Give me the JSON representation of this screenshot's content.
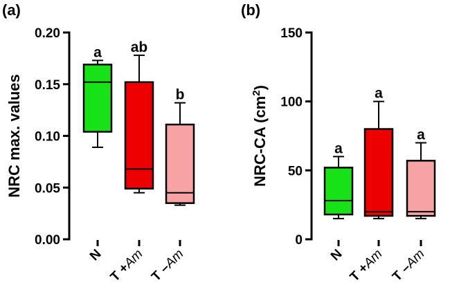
{
  "chart_data": [
    {
      "type": "box",
      "panel_label": "(a)",
      "ylabel": "NRC max. values",
      "ylim": [
        0,
        0.2
      ],
      "yticks": [
        "0.00",
        "0.05",
        "0.10",
        "0.15",
        "0.20"
      ],
      "ytick_values": [
        0,
        0.05,
        0.1,
        0.15,
        0.2
      ],
      "categories": [
        {
          "prefix": "N",
          "italic": ""
        },
        {
          "prefix": "T +",
          "italic": "Am"
        },
        {
          "prefix": "T –",
          "italic": "Am"
        }
      ],
      "boxes": [
        {
          "min": 0.089,
          "q1": 0.104,
          "median": 0.152,
          "q3": 0.169,
          "max": 0.173,
          "color": "#16e216",
          "letter": "a"
        },
        {
          "min": 0.045,
          "q1": 0.049,
          "median": 0.068,
          "q3": 0.152,
          "max": 0.178,
          "color": "#ee0000",
          "letter": "ab"
        },
        {
          "min": 0.033,
          "q1": 0.035,
          "median": 0.045,
          "q3": 0.111,
          "max": 0.132,
          "color": "#f7a3a3",
          "letter": "b"
        }
      ]
    },
    {
      "type": "box",
      "panel_label": "(b)",
      "ylabel": "NRC-CA (cm",
      "ylabel_superscript": "2",
      "ylabel_suffix": ")",
      "ylim": [
        0,
        150
      ],
      "yticks": [
        "0",
        "50",
        "100",
        "150"
      ],
      "ytick_values": [
        0,
        50,
        100,
        150
      ],
      "categories": [
        {
          "prefix": "N",
          "italic": ""
        },
        {
          "prefix": "T +",
          "italic": "Am"
        },
        {
          "prefix": "T –",
          "italic": "Am"
        }
      ],
      "boxes": [
        {
          "min": 15,
          "q1": 18,
          "median": 28,
          "q3": 52,
          "max": 60,
          "color": "#16e216",
          "letter": "a"
        },
        {
          "min": 15,
          "q1": 17,
          "median": 20,
          "q3": 80,
          "max": 100,
          "color": "#ee0000",
          "letter": "a"
        },
        {
          "min": 15,
          "q1": 17,
          "median": 20,
          "q3": 57,
          "max": 70,
          "color": "#f7a3a3",
          "letter": "a"
        }
      ]
    }
  ]
}
